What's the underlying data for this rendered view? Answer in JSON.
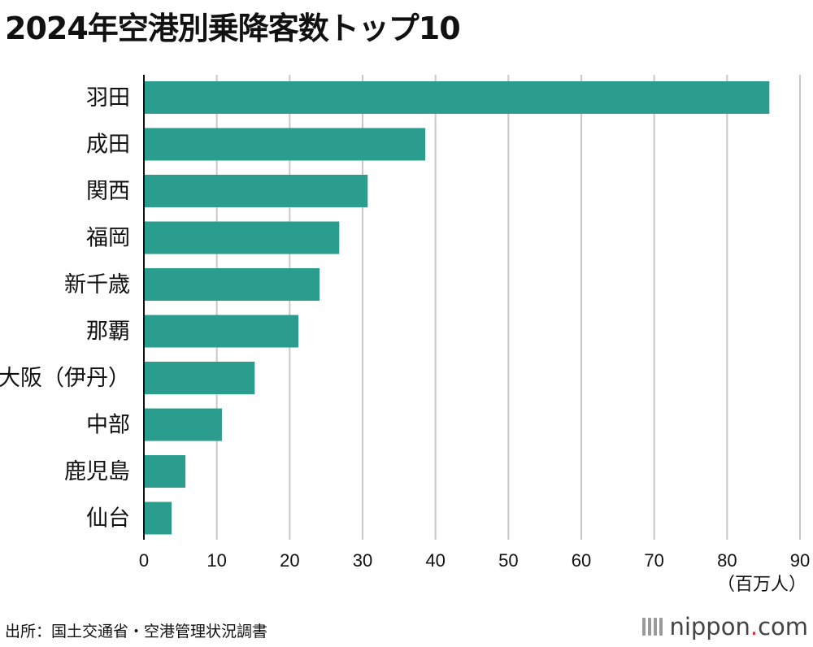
{
  "title": "2024年空港別乗降客数トップ10",
  "source": "出所：国土交通省・空港管理状況調書",
  "logo": {
    "main": "nippon",
    "dot": ".",
    "suffix": "com"
  },
  "colors": {
    "bar": "#2b9d8f",
    "grid": "#c8c8c8",
    "axis": "#111111"
  },
  "chart_data": {
    "type": "bar",
    "orientation": "horizontal",
    "categories": [
      "羽田",
      "成田",
      "関西",
      "福岡",
      "新千歳",
      "那覇",
      "大阪（伊丹）",
      "中部",
      "鹿児島",
      "仙台"
    ],
    "values": [
      85.8,
      38.6,
      30.7,
      26.8,
      24.1,
      21.2,
      15.2,
      10.7,
      5.7,
      3.8
    ],
    "xlim": [
      0,
      90
    ],
    "xticks": [
      "0",
      "10",
      "20",
      "30",
      "40",
      "50",
      "60",
      "70",
      "80",
      "90"
    ],
    "xlabel": "（百万人）",
    "grid": true
  }
}
